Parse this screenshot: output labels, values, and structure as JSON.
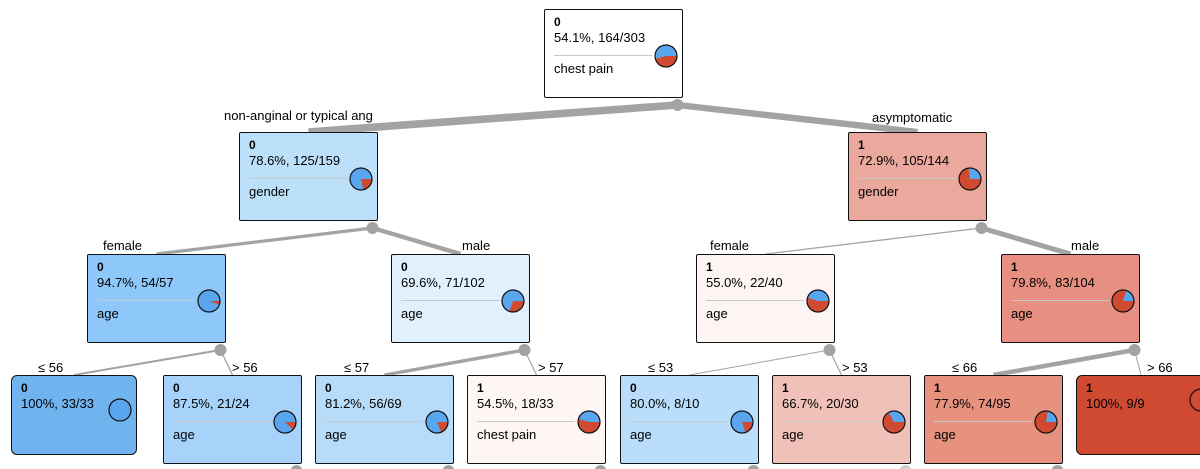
{
  "colors": {
    "class0": "#5aa6ee",
    "class1": "#d04a32",
    "edge": "#a3a3a3",
    "joint": "#a3a3a3"
  },
  "nodes": {
    "root": {
      "cls": "0",
      "stat": "54.1%, 164/303",
      "split": "chest pain",
      "p1": 0.459,
      "fill": "#ffffff"
    },
    "l": {
      "cls": "0",
      "stat": "78.6%, 125/159",
      "split": "gender",
      "p1": 0.214,
      "fill": "#bde0fa"
    },
    "r": {
      "cls": "1",
      "stat": "72.9%, 105/144",
      "split": "gender",
      "p1": 0.729,
      "fill": "#eba99d"
    },
    "ll": {
      "cls": "0",
      "stat": "94.7%, 54/57",
      "split": "age",
      "p1": 0.053,
      "fill": "#8ec8fb"
    },
    "lr": {
      "cls": "0",
      "stat": "69.6%, 71/102",
      "split": "age",
      "p1": 0.304,
      "fill": "#e0f0fc"
    },
    "rl": {
      "cls": "1",
      "stat": "55.0%, 22/40",
      "split": "age",
      "p1": 0.55,
      "fill": "#fdf5f3"
    },
    "rr": {
      "cls": "1",
      "stat": "79.8%, 83/104",
      "split": "age",
      "p1": 0.798,
      "fill": "#e78f80"
    },
    "lll": {
      "cls": "0",
      "stat": "100%, 33/33",
      "split": "",
      "p1": 0.0,
      "fill": "#6fb4ef"
    },
    "llr": {
      "cls": "0",
      "stat": "87.5%, 21/24",
      "split": "age",
      "p1": 0.125,
      "fill": "#a7d3fb"
    },
    "lrl": {
      "cls": "0",
      "stat": "81.2%, 56/69",
      "split": "age",
      "p1": 0.188,
      "fill": "#b7dcfa"
    },
    "lrr": {
      "cls": "1",
      "stat": "54.5%, 18/33",
      "split": "chest pain",
      "p1": 0.545,
      "fill": "#fdf6f4"
    },
    "rll": {
      "cls": "0",
      "stat": "80.0%, 8/10",
      "split": "age",
      "p1": 0.2,
      "fill": "#b9ddfa"
    },
    "rlr": {
      "cls": "1",
      "stat": "66.7%, 20/30",
      "split": "age",
      "p1": 0.667,
      "fill": "#f0c1b8"
    },
    "rrl": {
      "cls": "1",
      "stat": "77.9%, 74/95",
      "split": "age",
      "p1": 0.779,
      "fill": "#e7917f"
    },
    "rrr": {
      "cls": "1",
      "stat": "100%, 9/9",
      "split": "",
      "p1": 1.0,
      "fill": "#d04a32"
    }
  },
  "edge_labels": {
    "root_l": "non-anginal or typical ang",
    "root_r": "asymptomatic",
    "l_l": "female",
    "l_r": "male",
    "r_l": "female",
    "r_r": "male",
    "ll_l": "≤ 56",
    "ll_r": "> 56",
    "lr_l": "≤ 57",
    "lr_r": "> 57",
    "rl_l": "≤ 53",
    "rl_r": "> 53",
    "rr_l": "≤ 66",
    "rr_r": "> 66"
  }
}
